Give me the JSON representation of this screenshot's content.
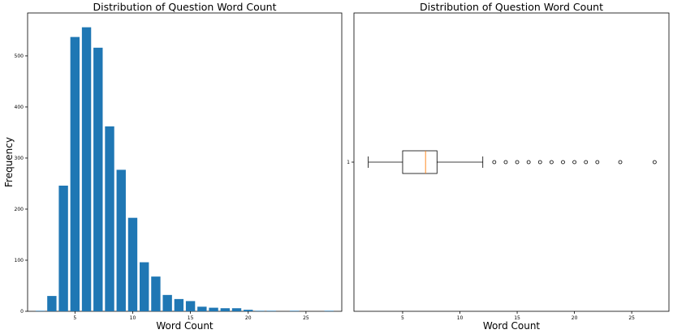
{
  "chart_data": [
    {
      "type": "bar",
      "title": "Distribution of Question Word Count",
      "xlabel": "Word Count",
      "ylabel": "Frequency",
      "x": [
        2,
        3,
        4,
        5,
        6,
        7,
        8,
        9,
        10,
        11,
        12,
        13,
        14,
        15,
        16,
        17,
        18,
        19,
        20,
        21,
        22,
        24,
        27
      ],
      "values": [
        1,
        30,
        246,
        537,
        556,
        516,
        362,
        277,
        183,
        96,
        68,
        32,
        24,
        20,
        9,
        7,
        6,
        6,
        3,
        1,
        1,
        1,
        1
      ],
      "xlim": [
        0.9,
        28.1
      ],
      "ylim": [
        0,
        584
      ],
      "xticks": [
        5,
        10,
        15,
        20,
        25
      ],
      "yticks": [
        0,
        100,
        200,
        300,
        400,
        500
      ],
      "color": "#1f77b4",
      "grid": false,
      "legend": "none"
    },
    {
      "type": "box",
      "title": "Distribution of Question Word Count",
      "xlabel": "Word Count",
      "orientation": "horizontal",
      "category": "1",
      "whisker_low": 2,
      "q1": 5,
      "median": 7,
      "q3": 8,
      "whisker_high": 12,
      "outliers": [
        13,
        14,
        15,
        16,
        17,
        18,
        19,
        20,
        21,
        22,
        24,
        27
      ],
      "xlim": [
        0.75,
        28.25
      ],
      "xticks": [
        5,
        10,
        15,
        20,
        25
      ],
      "median_color": "#ff7f0e",
      "grid": false,
      "legend": "none"
    }
  ]
}
